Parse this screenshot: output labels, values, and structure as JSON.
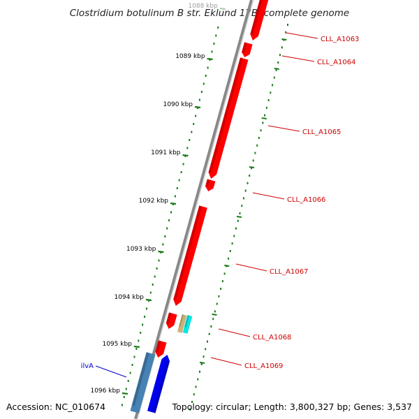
{
  "title": "Clostridium botulinum B str. Eklund 17B, complete genome",
  "ticks": [
    {
      "label": "1088 kbp",
      "faded": true
    },
    {
      "label": "1089 kbp"
    },
    {
      "label": "1090 kbp"
    },
    {
      "label": "1091 kbp"
    },
    {
      "label": "1092 kbp"
    },
    {
      "label": "1093 kbp"
    },
    {
      "label": "1094 kbp"
    },
    {
      "label": "1095 kbp"
    },
    {
      "label": "1096 kbp"
    }
  ],
  "genes": [
    {
      "label": "CLL_A1063",
      "strand": "forward"
    },
    {
      "label": "CLL_A1064",
      "strand": "forward"
    },
    {
      "label": "CLL_A1065",
      "strand": "forward"
    },
    {
      "label": "CLL_A1066",
      "strand": "forward"
    },
    {
      "label": "CLL_A1067",
      "strand": "forward"
    },
    {
      "label": "CLL_A1068",
      "strand": "forward"
    },
    {
      "label": "CLL_A1069",
      "strand": "forward"
    },
    {
      "label": "ilvA",
      "strand": "reverse"
    }
  ],
  "colors": {
    "backbone": "#888888",
    "gene_forward": "#ff0000",
    "gene_reverse": "#0000ee",
    "gene_other": "#4682b4",
    "feature_tan": "#c8b478",
    "feature_cyan": "#00e5e5",
    "ticks": "#1a7a1a",
    "label_red": "#cc0000",
    "label_blue": "#0000cc"
  },
  "footer": {
    "accession": "Accession: NC_010674",
    "stats": "Topology: circular; Length: 3,800,327 bp; Genes: 3,537"
  }
}
